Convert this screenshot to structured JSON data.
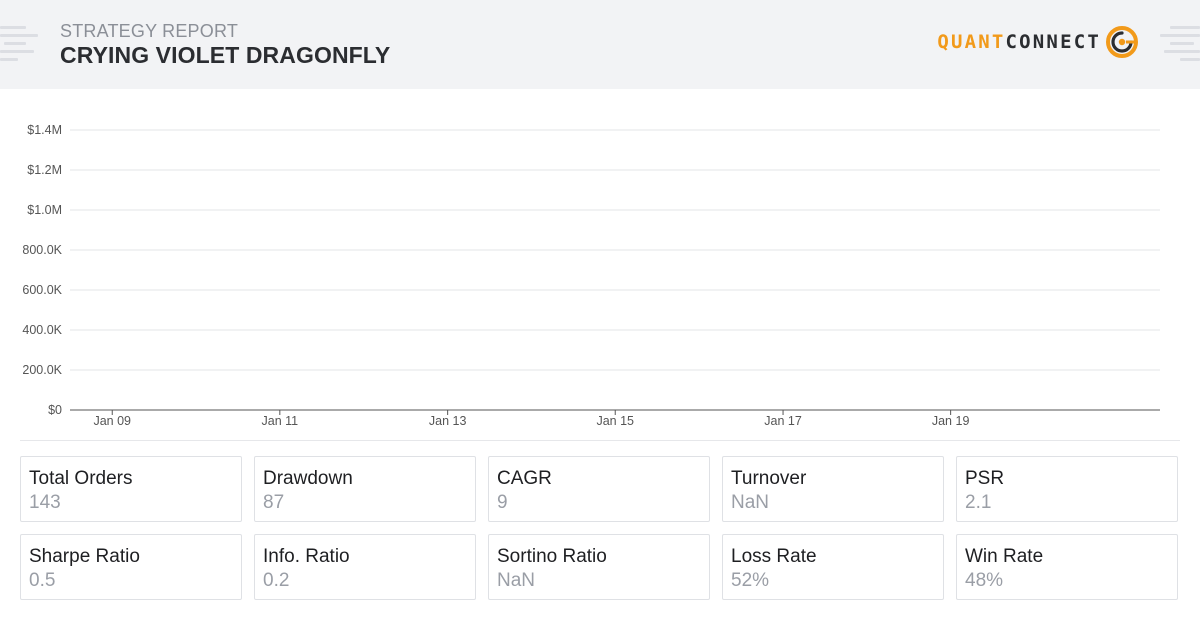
{
  "report": {
    "subtitle": "STRATEGY REPORT",
    "strategy_name": "CRYING VIOLET DRAGONFLY"
  },
  "logo": {
    "part1": "QUANT",
    "part2": "CONNECT",
    "icon": "quantconnect-logo-icon",
    "accent_color": "#f29a1a"
  },
  "chart_data": {
    "type": "line",
    "title": "",
    "xlabel": "",
    "ylabel": "",
    "y_tick_labels": [
      "$0",
      "200.0K",
      "400.0K",
      "600.0K",
      "800.0K",
      "$1.0M",
      "$1.2M",
      "$1.4M"
    ],
    "y_ticks": [
      0,
      200000,
      400000,
      600000,
      800000,
      1000000,
      1200000,
      1400000
    ],
    "ylim": [
      0,
      1400000
    ],
    "x_tick_labels": [
      "Jan 09",
      "Jan 11",
      "Jan 13",
      "Jan 15",
      "Jan 17",
      "Jan 19"
    ],
    "x_ticks": [
      "2009-01-01",
      "2011-01-01",
      "2013-01-01",
      "2015-01-01",
      "2017-01-01",
      "2019-01-01"
    ],
    "xlim": [
      "2008-07-01",
      "2021-07-01"
    ],
    "grid": true,
    "series": []
  },
  "stats": [
    [
      {
        "label": "Total Orders",
        "value": "143"
      },
      {
        "label": "Drawdown",
        "value": "87"
      },
      {
        "label": "CAGR",
        "value": "9"
      },
      {
        "label": "Turnover",
        "value": "NaN"
      },
      {
        "label": "PSR",
        "value": "2.1"
      }
    ],
    [
      {
        "label": "Sharpe Ratio",
        "value": "0.5"
      },
      {
        "label": "Info. Ratio",
        "value": "0.2"
      },
      {
        "label": "Sortino Ratio",
        "value": "NaN"
      },
      {
        "label": "Loss Rate",
        "value": "52%"
      },
      {
        "label": "Win Rate",
        "value": "48%"
      }
    ]
  ]
}
